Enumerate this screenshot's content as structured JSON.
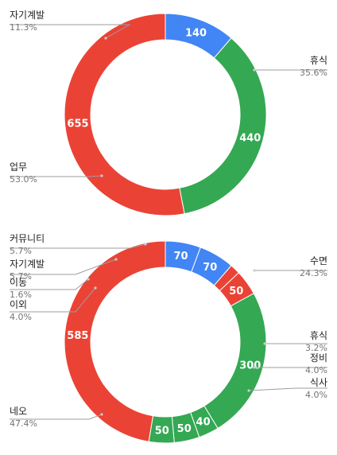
{
  "chart_data": [
    {
      "type": "pie",
      "donut": true,
      "slices": [
        {
          "label": "자기계발",
          "value": 140,
          "value_label": "140",
          "percent": "11.3%",
          "color": "#4285f4"
        },
        {
          "label": "휴식",
          "value": 440,
          "value_label": "440",
          "percent": "35.6%",
          "color": "#34a853"
        },
        {
          "label": "업무",
          "value": 655,
          "value_label": "655",
          "percent": "53.0%",
          "color": "#ea4335"
        }
      ]
    },
    {
      "type": "pie",
      "donut": true,
      "slices": [
        {
          "label": "커뮤니티",
          "value": 70,
          "value_label": "70",
          "percent": "5.7%",
          "color": "#4285f4"
        },
        {
          "label": "자기계발",
          "value": 70,
          "value_label": "70",
          "percent": "5.7%",
          "color": "#4285f4"
        },
        {
          "label": "이동",
          "value": 20,
          "value_label": "",
          "percent": "1.6%",
          "color": "#ea4335"
        },
        {
          "label": "이외",
          "value": 50,
          "value_label": "50",
          "percent": "4.0%",
          "color": "#ea4335"
        },
        {
          "label": "수면",
          "value": 300,
          "value_label": "300",
          "percent": "24.3%",
          "color": "#34a853"
        },
        {
          "label": "휴식",
          "value": 40,
          "value_label": "40",
          "percent": "3.2%",
          "color": "#34a853"
        },
        {
          "label": "정비",
          "value": 50,
          "value_label": "50",
          "percent": "4.0%",
          "color": "#34a853"
        },
        {
          "label": "식사",
          "value": 50,
          "value_label": "50",
          "percent": "4.0%",
          "color": "#34a853"
        },
        {
          "label": "네오",
          "value": 585,
          "value_label": "585",
          "percent": "47.4%",
          "color": "#ea4335"
        }
      ]
    }
  ]
}
